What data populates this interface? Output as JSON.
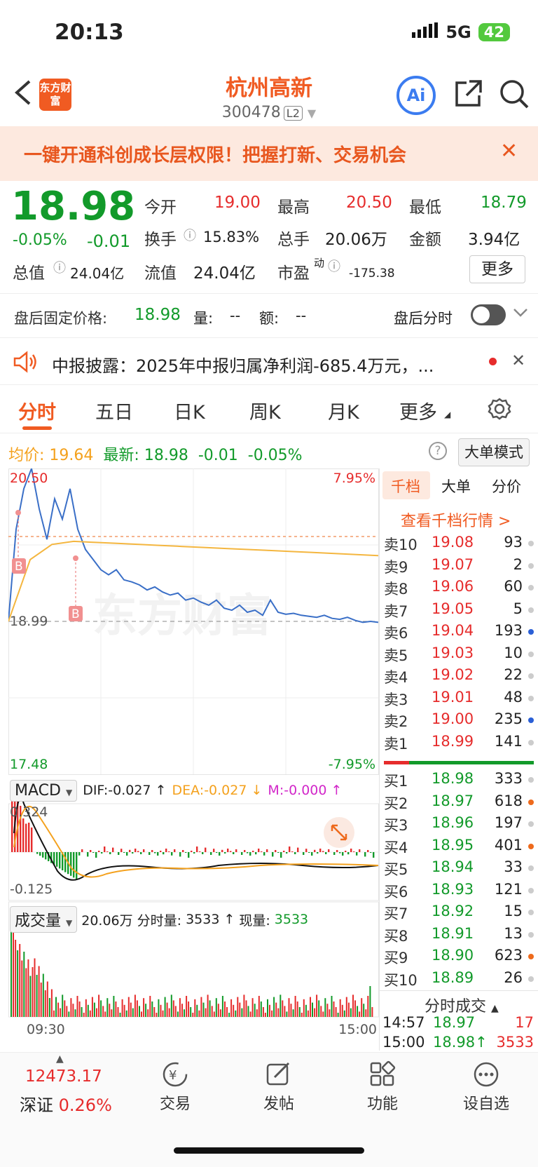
{
  "status_bar": {
    "time": "20:13",
    "network": "5G",
    "battery": "42"
  },
  "header": {
    "title": "杭州高新",
    "code": "300478",
    "level": "L2",
    "logo": "东方财富",
    "ai": "Ai"
  },
  "banner": {
    "text": "一键开通科创成长层权限！把握打新、交易机会"
  },
  "quote": {
    "price": "18.98",
    "pct": "-0.05%",
    "change": "-0.01",
    "open_label": "今开",
    "open": "19.00",
    "high_label": "最高",
    "high": "20.50",
    "low_label": "最低",
    "low": "18.79",
    "turnover_label": "换手",
    "turnover": "15.83%",
    "volume_label": "总手",
    "volume": "20.06万",
    "amount_label": "金额",
    "amount": "3.94亿",
    "mktcap_label": "总值",
    "mktcap": "24.04亿",
    "float_label": "流值",
    "float": "24.04亿",
    "pe_label": "市盈",
    "pe_sup": "动",
    "pe": "-175.38",
    "more": "更多"
  },
  "after_hours": {
    "label": "盘后固定价格:",
    "price": "18.98",
    "vol_label": "量:",
    "vol": "--",
    "amt_label": "额:",
    "amt": "--",
    "fenshi_label": "盘后分时"
  },
  "news": {
    "text": "中报披露：2025年中报归属净利润-685.4万元，..."
  },
  "tabs": [
    "分时",
    "五日",
    "日K",
    "周K",
    "月K",
    "更多"
  ],
  "avg_row": {
    "avg_label": "均价:",
    "avg": "19.64",
    "latest_label": "最新:",
    "latest": "18.98",
    "chg": "-0.01",
    "pct": "-0.05%",
    "big_order": "大单模式"
  },
  "chart_labels": {
    "top_price": "20.50",
    "top_pct": "7.95%",
    "ref_price": "18.99",
    "bottom_price": "17.48",
    "bottom_pct": "-7.95%",
    "marker": "B",
    "watermark": "东方财富",
    "time_start": "09:30",
    "time_end": "15:00"
  },
  "chart_data": {
    "type": "line",
    "x_range": [
      "09:30",
      "15:00"
    ],
    "y_range": [
      17.48,
      20.5
    ],
    "prev_close": 18.99,
    "series": [
      {
        "values": [
          18.99,
          19.9,
          20.3,
          20.5,
          20.1,
          19.8,
          20.2,
          20.0,
          20.3,
          19.9,
          19.7,
          19.6,
          19.5,
          19.45,
          19.5,
          19.4,
          19.38,
          19.35,
          19.3,
          19.33,
          19.28,
          19.25,
          19.27,
          19.2,
          19.22,
          19.18,
          19.15,
          19.2,
          19.12,
          19.1,
          19.15,
          19.08,
          19.1,
          19.05,
          19.2,
          19.08,
          19.06,
          19.07,
          19.05,
          19.04,
          19.03,
          19.05,
          19.02,
          19.01,
          19.03,
          19.0,
          18.98,
          18.99,
          18.98
        ]
      },
      {
        "values": [
          18.99,
          19.6,
          19.75,
          19.78,
          19.77,
          19.76,
          19.75,
          19.74,
          19.73,
          19.72,
          19.71,
          19.7,
          19.69,
          19.68,
          19.67,
          19.66,
          19.65,
          19.64
        ]
      }
    ]
  },
  "macd": {
    "label": "MACD",
    "dif": "DIF:-0.027 ↑",
    "dea": "DEA:-0.027 ↓",
    "m": "M:-0.000 ↑",
    "top": "0.324",
    "bottom": "-0.125"
  },
  "volume_panel": {
    "label": "成交量",
    "total": "20.06万",
    "fenshi_label": "分时量:",
    "fenshi": "3533 ↑",
    "now_label": "现量:",
    "now": "3533",
    "max": "11707"
  },
  "order_book": {
    "tabs": [
      "千档",
      "大单",
      "分价"
    ],
    "link": "查看千档行情 >",
    "asks": [
      {
        "label": "卖10",
        "price": "19.08",
        "vol": "93",
        "dot": "#cccccc"
      },
      {
        "label": "卖9",
        "price": "19.07",
        "vol": "2",
        "dot": "#cccccc"
      },
      {
        "label": "卖8",
        "price": "19.06",
        "vol": "60",
        "dot": "#cccccc"
      },
      {
        "label": "卖7",
        "price": "19.05",
        "vol": "5",
        "dot": "#cccccc"
      },
      {
        "label": "卖6",
        "price": "19.04",
        "vol": "193",
        "dot": "#2a5fd6"
      },
      {
        "label": "卖5",
        "price": "19.03",
        "vol": "10",
        "dot": "#cccccc"
      },
      {
        "label": "卖4",
        "price": "19.02",
        "vol": "22",
        "dot": "#cccccc"
      },
      {
        "label": "卖3",
        "price": "19.01",
        "vol": "48",
        "dot": "#cccccc"
      },
      {
        "label": "卖2",
        "price": "19.00",
        "vol": "235",
        "dot": "#2a5fd6"
      },
      {
        "label": "卖1",
        "price": "18.99",
        "vol": "141",
        "dot": "#cccccc"
      }
    ],
    "bids": [
      {
        "label": "买1",
        "price": "18.98",
        "vol": "333",
        "dot": "#cccccc"
      },
      {
        "label": "买2",
        "price": "18.97",
        "vol": "618",
        "dot": "#ee6a1c"
      },
      {
        "label": "买3",
        "price": "18.96",
        "vol": "197",
        "dot": "#cccccc"
      },
      {
        "label": "买4",
        "price": "18.95",
        "vol": "401",
        "dot": "#ee6a1c"
      },
      {
        "label": "买5",
        "price": "18.94",
        "vol": "33",
        "dot": "#cccccc"
      },
      {
        "label": "买6",
        "price": "18.93",
        "vol": "121",
        "dot": "#cccccc"
      },
      {
        "label": "买7",
        "price": "18.92",
        "vol": "15",
        "dot": "#cccccc"
      },
      {
        "label": "买8",
        "price": "18.91",
        "vol": "13",
        "dot": "#cccccc"
      },
      {
        "label": "买9",
        "price": "18.90",
        "vol": "623",
        "dot": "#ee6a1c"
      },
      {
        "label": "买10",
        "price": "18.89",
        "vol": "26",
        "dot": "#cccccc"
      }
    ],
    "trades_title": "分时成交",
    "trades": [
      {
        "time": "14:57",
        "price": "18.97",
        "vol": "17"
      },
      {
        "time": "15:00",
        "price": "18.98↑",
        "vol": "3533"
      }
    ]
  },
  "bottom_nav": {
    "index_value": "12473.17",
    "index_name": "深证",
    "index_pct": "0.26%",
    "items": [
      "交易",
      "发帖",
      "功能",
      "设自选"
    ]
  }
}
